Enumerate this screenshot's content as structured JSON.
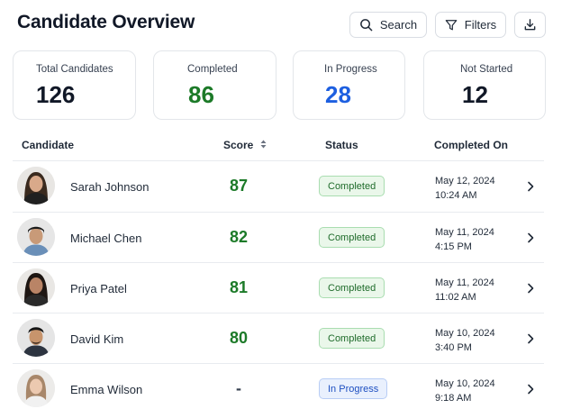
{
  "page": {
    "title": "Candidate Overview"
  },
  "toolbar": {
    "search_label": "Search",
    "filters_label": "Filters",
    "search_icon": "search-icon",
    "filter_icon": "filter-icon",
    "download_icon": "download-icon"
  },
  "stats": [
    {
      "label": "Total Candidates",
      "value": "126"
    },
    {
      "label": "Completed",
      "value": "86"
    },
    {
      "label": "In Progress",
      "value": "28"
    },
    {
      "label": "Not Started",
      "value": "12"
    }
  ],
  "table": {
    "headers": {
      "candidate": "Candidate",
      "score": "Score",
      "status": "Status",
      "completed_on": "Completed On"
    },
    "rows": [
      {
        "name": "Sarah Johnson",
        "score": "87",
        "status": "Completed",
        "date": "May 12, 2024",
        "time": "10:24 AM"
      },
      {
        "name": "Michael Chen",
        "score": "82",
        "status": "Completed",
        "date": "May 11, 2024",
        "time": "4:15 PM"
      },
      {
        "name": "Priya Patel",
        "score": "81",
        "status": "Completed",
        "date": "May 11, 2024",
        "time": "11:02 AM"
      },
      {
        "name": "David Kim",
        "score": "80",
        "status": "Completed",
        "date": "May 10, 2024",
        "time": "3:40 PM"
      },
      {
        "name": "Emma Wilson",
        "score": "-",
        "status": "In Progress",
        "date": "May 10, 2024",
        "time": "9:18 AM"
      }
    ]
  },
  "colors": {
    "score_green": "#1c7a28",
    "in_progress_blue": "#1d5fe0",
    "completed_badge_bg": "#eaf7ea",
    "in_progress_badge_bg": "#e9f0fd"
  }
}
